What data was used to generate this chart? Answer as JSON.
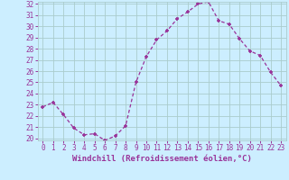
{
  "hours": [
    0,
    1,
    2,
    3,
    4,
    5,
    6,
    7,
    8,
    9,
    10,
    11,
    12,
    13,
    14,
    15,
    16,
    17,
    18,
    19,
    20,
    21,
    22,
    23
  ],
  "values": [
    22.8,
    23.2,
    22.1,
    20.9,
    20.3,
    20.4,
    19.8,
    20.2,
    21.1,
    25.0,
    27.3,
    28.8,
    29.6,
    30.7,
    31.3,
    32.0,
    32.2,
    30.5,
    30.2,
    28.9,
    27.8,
    27.4,
    25.9,
    24.7
  ],
  "ylim": [
    20,
    32
  ],
  "yticks": [
    20,
    21,
    22,
    23,
    24,
    25,
    26,
    27,
    28,
    29,
    30,
    31,
    32
  ],
  "xlim": [
    -0.5,
    23.5
  ],
  "xticks": [
    0,
    1,
    2,
    3,
    4,
    5,
    6,
    7,
    8,
    9,
    10,
    11,
    12,
    13,
    14,
    15,
    16,
    17,
    18,
    19,
    20,
    21,
    22,
    23
  ],
  "line_color": "#993399",
  "marker": "+",
  "bg_color": "#cceeff",
  "grid_color": "#aacccc",
  "xlabel": "Windchill (Refroidissement éolien,°C)",
  "xlabel_color": "#993399",
  "tick_color": "#993399",
  "label_fontsize": 6.5,
  "tick_fontsize": 5.5
}
